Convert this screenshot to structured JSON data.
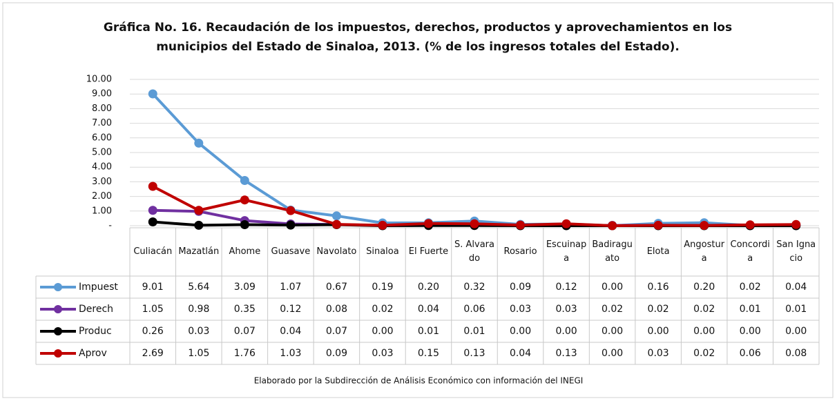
{
  "chart_data": {
    "type": "line",
    "title": "Gráfica No. 16. Recaudación de los impuestos, derechos, productos y aprovechamientos en los municipios del Estado de Sinaloa, 2013. (% de los ingresos totales del Estado).",
    "note": "Elaborado por la Subdirección de Análisis Económico con información del INEGI",
    "categories": [
      "Culiacán",
      "Mazatlán",
      "Ahome",
      "Guasave",
      "Navolato",
      "Sinaloa",
      "El Fuerte",
      "S. Alvarado",
      "Rosario",
      "Escuinapa",
      "Badiraguato",
      "Elota",
      "Angostura",
      "Concordia",
      "San Ignacio"
    ],
    "series": [
      {
        "name": "Impuest",
        "color": "#5b9bd5",
        "values": [
          9.01,
          5.64,
          3.09,
          1.07,
          0.67,
          0.19,
          0.2,
          0.32,
          0.09,
          0.12,
          0,
          0.16,
          0.2,
          0.02,
          0.04
        ],
        "value_labels": [
          "9.01",
          "5.64",
          "3.09",
          "1.07",
          "0.67",
          "0.19",
          "0.20",
          "0.32",
          "0.09",
          "0.12",
          "0.00",
          "0.16",
          "0.20",
          "0.02",
          "0.04"
        ]
      },
      {
        "name": "Derech",
        "color": "#7030a0",
        "values": [
          1.05,
          0.98,
          0.35,
          0.12,
          0.08,
          0.02,
          0.04,
          0.06,
          0.03,
          0.03,
          0.02,
          0.02,
          0.02,
          0.01,
          0.01
        ],
        "value_labels": [
          "1.05",
          "0.98",
          "0.35",
          "0.12",
          "0.08",
          "0.02",
          "0.04",
          "0.06",
          "0.03",
          "0.03",
          "0.02",
          "0.02",
          "0.02",
          "0.01",
          "0.01"
        ]
      },
      {
        "name": "Produc",
        "color": "#000000",
        "values": [
          0.26,
          0.03,
          0.07,
          0.04,
          0.07,
          0,
          0.01,
          0.01,
          0,
          0,
          0,
          0,
          0,
          0,
          0
        ],
        "value_labels": [
          "0.26",
          "0.03",
          "0.07",
          "0.04",
          "0.07",
          "0.00",
          "0.01",
          "0.01",
          "0.00",
          "0.00",
          "0.00",
          "0.00",
          "0.00",
          "0.00",
          "0.00"
        ]
      },
      {
        "name": "Aprov",
        "color": "#c00000",
        "values": [
          2.69,
          1.05,
          1.76,
          1.03,
          0.09,
          0.03,
          0.15,
          0.13,
          0.04,
          0.13,
          0,
          0.03,
          0.02,
          0.06,
          0.08
        ],
        "value_labels": [
          "2.69",
          "1.05",
          "1.76",
          "1.03",
          "0.09",
          "0.03",
          "0.15",
          "0.13",
          "0.04",
          "0.13",
          "0.00",
          "0.03",
          "0.02",
          "0.06",
          "0.08"
        ]
      }
    ],
    "ylim": [
      0,
      10
    ],
    "yticks": [
      {
        "value": 0,
        "label": "-"
      },
      {
        "value": 1,
        "label": "1.00"
      },
      {
        "value": 2,
        "label": "2.00"
      },
      {
        "value": 3,
        "label": "3.00"
      },
      {
        "value": 4,
        "label": "4.00"
      },
      {
        "value": 5,
        "label": "5.00"
      },
      {
        "value": 6,
        "label": "6.00"
      },
      {
        "value": 7,
        "label": "7.00"
      },
      {
        "value": 8,
        "label": "8.00"
      },
      {
        "value": 9,
        "label": "9.00"
      },
      {
        "value": 10,
        "label": "10.00"
      }
    ],
    "grid": true
  }
}
